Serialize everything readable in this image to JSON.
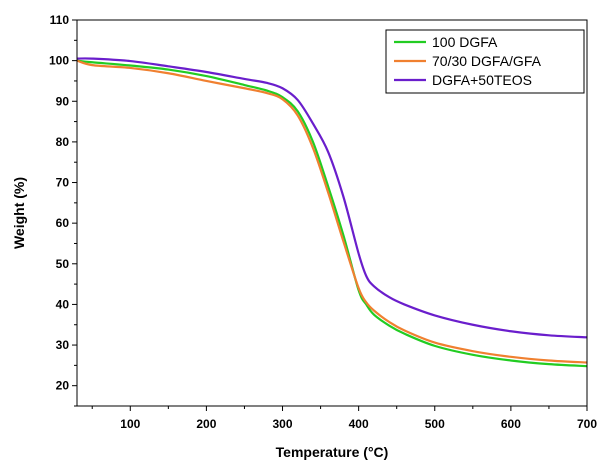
{
  "chart_data": {
    "type": "line",
    "title": "",
    "xlabel": "Temperature (°C)",
    "ylabel": "Weight (%)",
    "xlim": [
      30,
      700
    ],
    "ylim": [
      15,
      110
    ],
    "xticks": [
      100,
      200,
      300,
      400,
      500,
      600,
      700
    ],
    "yticks": [
      20,
      30,
      40,
      50,
      60,
      70,
      80,
      90,
      100,
      110
    ],
    "grid": false,
    "legend_position": "top-right",
    "series": [
      {
        "name": "100 DGFA",
        "color": "#22cc22",
        "x": [
          30,
          50,
          100,
          150,
          200,
          250,
          280,
          300,
          320,
          340,
          360,
          380,
          400,
          410,
          420,
          440,
          460,
          500,
          550,
          600,
          650,
          700
        ],
        "y": [
          100,
          99.6,
          98.8,
          97.8,
          96.2,
          94,
          92.6,
          91,
          87.5,
          80,
          69,
          57,
          43.5,
          40,
          37.5,
          34.8,
          32.8,
          29.8,
          27.6,
          26.2,
          25.3,
          24.8
        ]
      },
      {
        "name": "70/30 DGFA/GFA",
        "color": "#f08030",
        "x": [
          30,
          50,
          100,
          150,
          200,
          250,
          280,
          300,
          320,
          340,
          360,
          380,
          400,
          410,
          420,
          440,
          460,
          500,
          550,
          600,
          650,
          700
        ],
        "y": [
          100,
          98.9,
          98.2,
          96.9,
          95,
          93.2,
          92,
          90.5,
          86.5,
          78.5,
          67.5,
          55.5,
          44,
          40.5,
          38.5,
          35.7,
          33.6,
          30.6,
          28.5,
          27.1,
          26.2,
          25.7
        ]
      },
      {
        "name": "DGFA+50TEOS",
        "color": "#6a1ecc",
        "x": [
          30,
          50,
          100,
          150,
          200,
          250,
          280,
          300,
          320,
          340,
          360,
          380,
          400,
          410,
          420,
          440,
          460,
          500,
          550,
          600,
          650,
          700
        ],
        "y": [
          100.5,
          100.5,
          99.9,
          98.6,
          97.2,
          95.5,
          94.5,
          93.2,
          90.3,
          84.5,
          77.5,
          66.5,
          52.5,
          47,
          44.5,
          41.8,
          40,
          37.3,
          35,
          33.4,
          32.4,
          31.9
        ]
      }
    ]
  }
}
